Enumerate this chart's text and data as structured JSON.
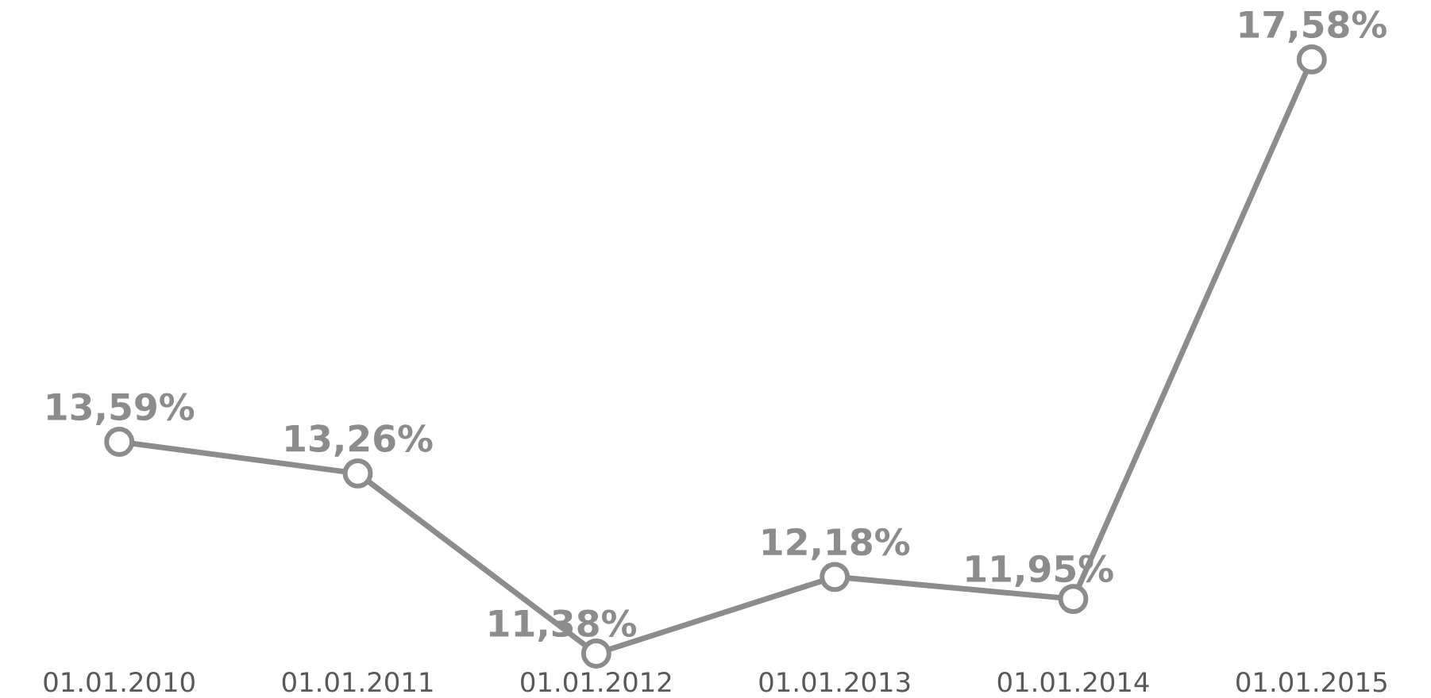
{
  "chart_data": {
    "type": "line",
    "categories": [
      "01.01.2010",
      "01.01.2011",
      "01.01.2012",
      "01.01.2013",
      "01.01.2014",
      "01.01.2015"
    ],
    "series": [
      {
        "color": "#8c8c8c",
        "values": [
          13.59,
          13.26,
          11.38,
          12.18,
          11.95,
          17.58
        ],
        "value_labels": [
          "13,59%",
          "13,26%",
          "11,38%",
          "12,18%",
          "11,95%",
          "17,58%"
        ]
      }
    ],
    "marker": "circle",
    "line_style": "solid"
  }
}
